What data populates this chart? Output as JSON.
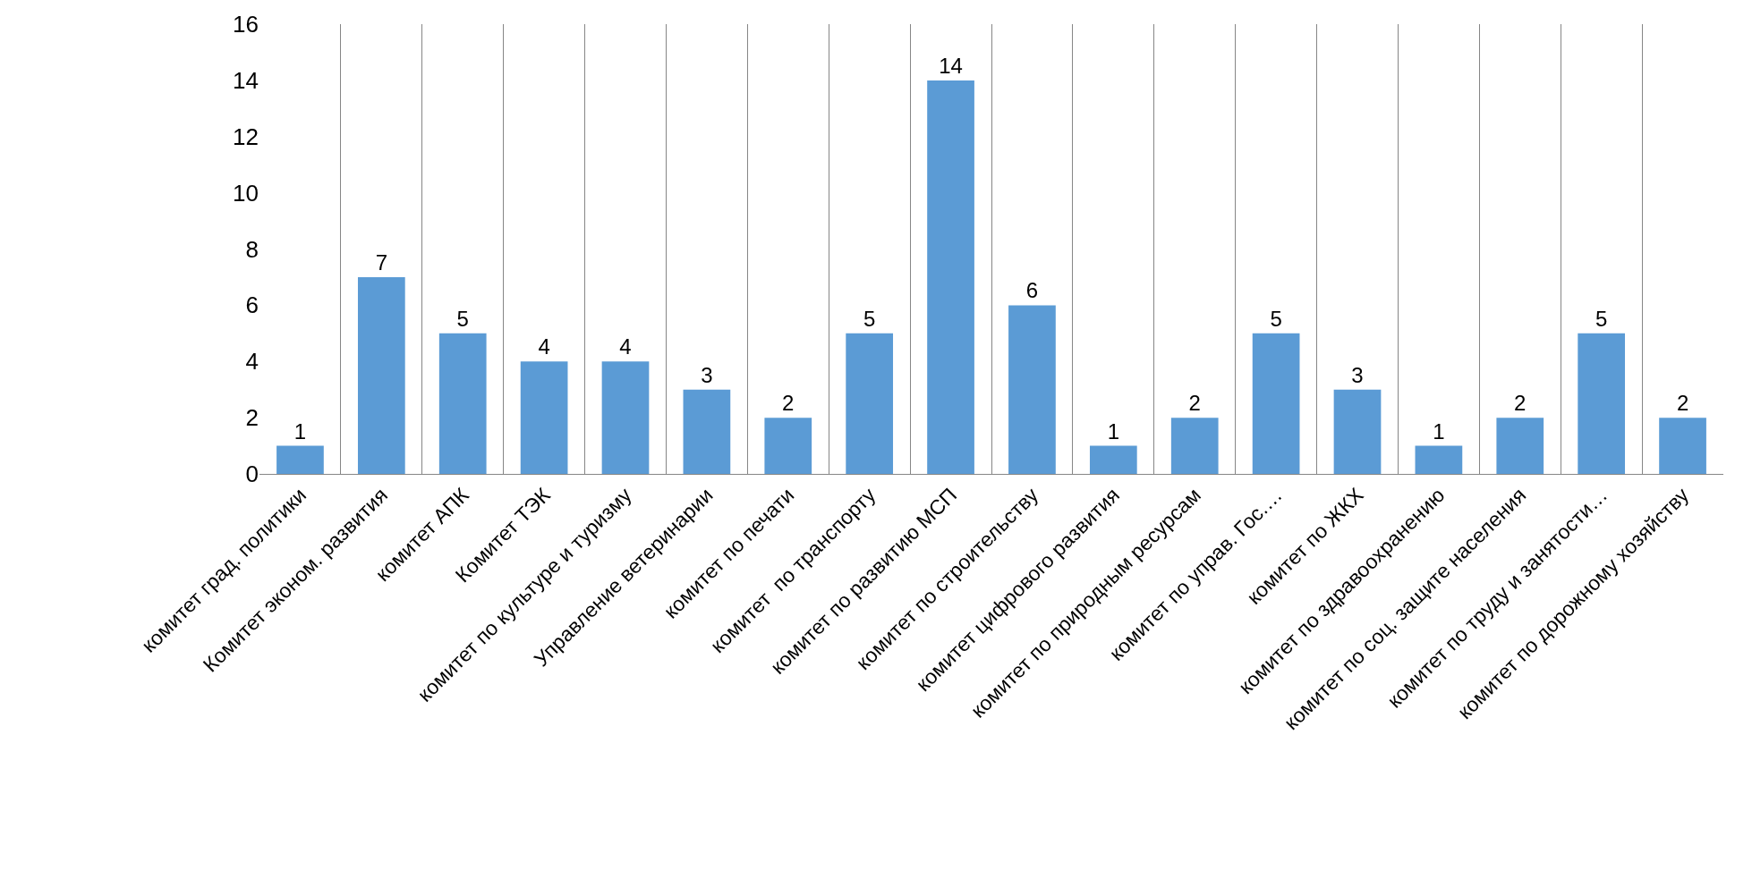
{
  "chart_data": {
    "type": "bar",
    "categories": [
      "комитет град. политики",
      "Комитет эконом. развития",
      "комитет АПК",
      "Комитет ТЭК",
      "комитет по культуре и туризму",
      "Управление ветеринарии",
      "комитет по печати",
      "комитет  по транспорту",
      "комитет по развитию МСП",
      "комитет по строительству",
      "комитет цифрового развития",
      "комитет по природным ресурсам",
      "комитет по управ. Гос.…",
      "комитет по ЖКХ",
      "комитет по здравоохранению",
      "комитет по соц. защите населения",
      "комитет по труду и занятости…",
      "комитет по дорожному хозяйству"
    ],
    "values": [
      1,
      7,
      5,
      4,
      4,
      3,
      2,
      5,
      14,
      6,
      1,
      2,
      5,
      3,
      1,
      2,
      5,
      2
    ],
    "color": "#5b9bd5",
    "ylim": [
      0,
      16
    ],
    "yticks": [
      0,
      2,
      4,
      6,
      8,
      10,
      12,
      14,
      16
    ],
    "grid": "x",
    "data_labels": true,
    "legend": false
  }
}
